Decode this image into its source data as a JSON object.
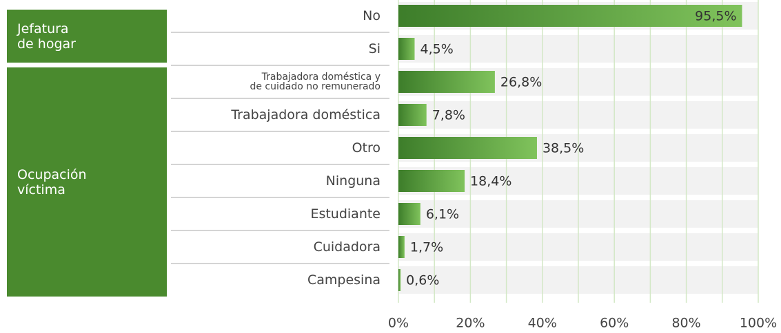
{
  "chart_data": {
    "type": "bar",
    "orientation": "horizontal",
    "groups": [
      {
        "name": "Jefatura\nde hogar",
        "categories": [
          "No",
          "Si"
        ],
        "values": [
          95.5,
          4.5
        ],
        "value_labels": [
          "95,5%",
          "4,5%"
        ]
      },
      {
        "name": "Ocupación\nvíctima",
        "categories": [
          "Trabajadora doméstica y\nde cuidado no remunerado",
          "Trabajadora doméstica",
          "Otro",
          "Ninguna",
          "Estudiante",
          "Cuidadora",
          "Campesina"
        ],
        "values": [
          26.8,
          7.8,
          38.5,
          18.4,
          6.1,
          1.7,
          0.6
        ],
        "value_labels": [
          "26,8%",
          "7,8%",
          "38,5%",
          "18,4%",
          "6,1%",
          "1,7%",
          "0,6%"
        ]
      }
    ],
    "xlim": [
      0,
      100
    ],
    "xticks": [
      {
        "value": 0,
        "label": "0%"
      },
      {
        "value": 20,
        "label": "20%"
      },
      {
        "value": 40,
        "label": "40%"
      },
      {
        "value": 60,
        "label": "60%"
      },
      {
        "value": 80,
        "label": "80%"
      },
      {
        "value": 100,
        "label": "100%"
      }
    ],
    "gridlines": [
      0,
      10,
      20,
      30,
      40,
      50,
      60,
      70,
      80,
      90,
      100
    ],
    "grid": true,
    "color_start": "#3d7d2a",
    "color_end": "#80c35c",
    "group_color": "#4a8a2e"
  }
}
